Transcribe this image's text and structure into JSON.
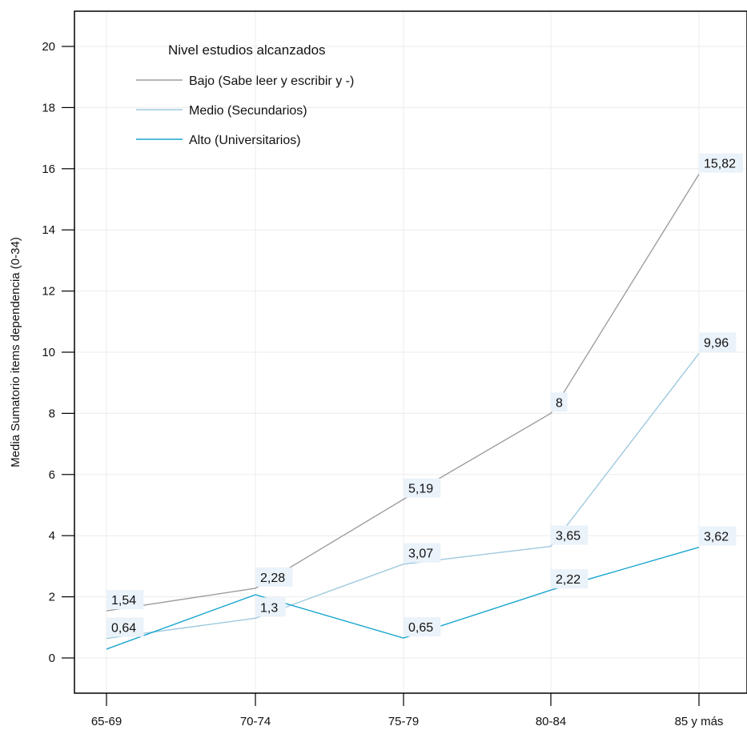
{
  "chart_data": {
    "type": "line",
    "title": "",
    "xlabel": "",
    "ylabel": "Media Sumatorio items dependencia (0-34)",
    "categories": [
      "65-69",
      "70-74",
      "75-79",
      "80-84",
      "85 y más"
    ],
    "ylim": [
      -1,
      21
    ],
    "yticks": [
      0,
      2,
      4,
      6,
      8,
      10,
      12,
      14,
      16,
      18,
      20
    ],
    "grid": true,
    "legend": {
      "title": "Nivel estudios alcanzados",
      "placement": "top-left"
    },
    "series": [
      {
        "name": "Bajo (Sabe leer y escribir y -)",
        "color": "#9e9e9e",
        "values": [
          1.54,
          2.28,
          5.19,
          8,
          15.82
        ],
        "labels": [
          "1,54",
          "2,28",
          "5,19",
          "8",
          "15,82"
        ]
      },
      {
        "name": "Medio (Secundarios)",
        "color": "#9ec9de",
        "values": [
          0.64,
          1.3,
          3.07,
          3.65,
          9.96
        ],
        "labels": [
          "0,64",
          "1,3",
          "3,07",
          "3,65",
          "9,96"
        ]
      },
      {
        "name": "Alto (Universitarios)",
        "color": "#1aa6cf",
        "values": [
          0.29,
          2.07,
          0.65,
          2.22,
          3.62
        ],
        "labels": [
          "",
          "",
          "0,65",
          "2,22",
          "3,62"
        ]
      }
    ]
  }
}
